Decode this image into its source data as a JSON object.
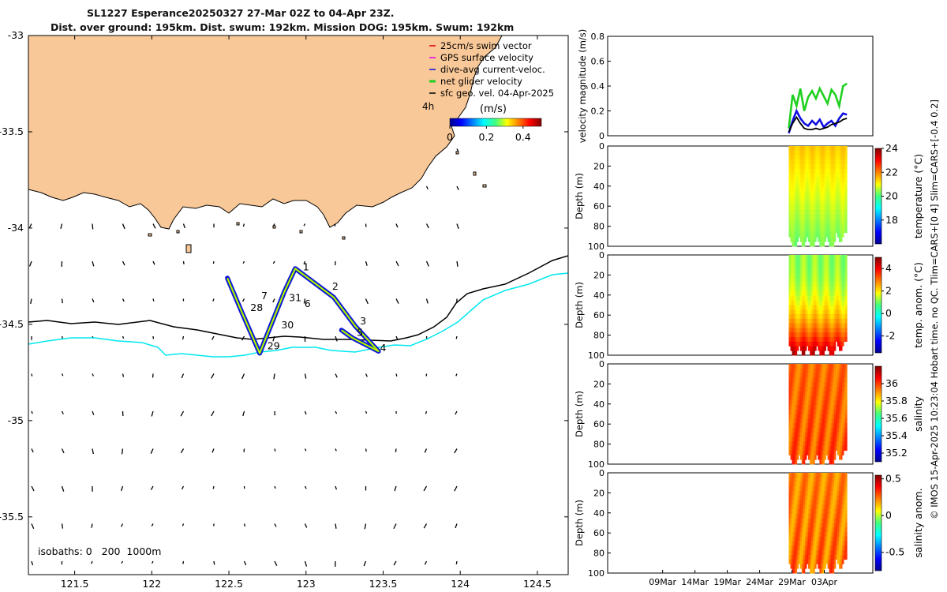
{
  "title": {
    "line1": "SL1227 Esperance20250327 27-Mar 02Z to 04-Apr 23Z.",
    "line2": "Dist. over ground: 195km. Dist. swum: 192km. Mission DOG: 195km. Swum: 192km"
  },
  "credit": "© IMOS 15-Apr-2025 10:23:04 Hobart time. no QC. Tlim=CARS+[0 4] Slim=CARS+[-0.4 0.2]",
  "colors": {
    "land": "#f9c898",
    "isobath_200": "#00e8ee",
    "isobath_1000": "#000000",
    "track": "#e8e800",
    "dive_avg": "#1010e0",
    "net_velocity": "#20d020"
  },
  "chart_data": [
    {
      "type": "map",
      "name": "track-map",
      "xlim": [
        121.2,
        124.7
      ],
      "ylim": [
        -35.8,
        -33.0
      ],
      "xticks": [
        121.5,
        122,
        122.5,
        123,
        123.5,
        124,
        124.5
      ],
      "xtick_labels": [
        "121.5",
        "122",
        "122.5",
        "123",
        "123.5",
        "124",
        "124.5"
      ],
      "yticks": [
        -33,
        -33.5,
        -34,
        -34.5,
        -35,
        -35.5
      ],
      "ytick_labels": [
        "-33",
        "-33.5",
        "-34",
        "-34.5",
        "-35",
        "-35.5"
      ],
      "track": [
        {
          "lon": 122.49,
          "lat": -34.26
        },
        {
          "lon": 122.58,
          "lat": -34.43
        },
        {
          "lon": 122.7,
          "lat": -34.65
        },
        {
          "lon": 122.8,
          "lat": -34.45
        },
        {
          "lon": 122.86,
          "lat": -34.33
        },
        {
          "lon": 122.93,
          "lat": -34.21
        },
        {
          "lon": 123.18,
          "lat": -34.36
        },
        {
          "lon": 123.32,
          "lat": -34.51
        },
        {
          "lon": 123.47,
          "lat": -34.64
        },
        {
          "lon": 123.3,
          "lat": -34.57
        },
        {
          "lon": 123.23,
          "lat": -34.53
        }
      ],
      "day_labels": [
        {
          "text": "1",
          "lon": 123.0,
          "lat": -34.22
        },
        {
          "text": "2",
          "lon": 123.19,
          "lat": -34.32
        },
        {
          "text": "3",
          "lon": 123.37,
          "lat": -34.5
        },
        {
          "text": "4",
          "lon": 123.5,
          "lat": -34.64
        },
        {
          "text": "5",
          "lon": 123.35,
          "lat": -34.56
        },
        {
          "text": "6",
          "lon": 123.01,
          "lat": -34.41
        },
        {
          "text": "7",
          "lon": 122.73,
          "lat": -34.37
        },
        {
          "text": "28",
          "lon": 122.68,
          "lat": -34.43
        },
        {
          "text": "29",
          "lon": 122.79,
          "lat": -34.63
        },
        {
          "text": "30",
          "lon": 122.88,
          "lat": -34.52
        },
        {
          "text": "31",
          "lon": 122.93,
          "lat": -34.38
        }
      ],
      "legend": [
        {
          "label": "25cm/s swim vector",
          "color": "#e00000"
        },
        {
          "label": "GPS surface velocity",
          "color": "#e000e0"
        },
        {
          "label": "dive-avg current-veloc.",
          "color": "#1010e0"
        },
        {
          "label": "net glider velocity",
          "color": "#20d020"
        },
        {
          "label": "sfc geo. vel. 04-Apr-2025",
          "color": "#000000"
        }
      ],
      "legend_extra": "4h",
      "colorbar": {
        "label": "(m/s)",
        "ticks": [
          "0",
          "0.2",
          "0.4"
        ],
        "range": [
          0,
          0.5
        ]
      },
      "isobaths_label": "isobaths: 0   200  1000m"
    },
    {
      "type": "line",
      "name": "velocity-magnitude",
      "ylabel": "velocity magnitude (m/s)",
      "ylim": [
        0,
        0.8
      ],
      "yticks": [
        "0",
        "0.2",
        "0.4",
        "0.6",
        "0.8"
      ],
      "xlim_days": [
        0,
        41
      ],
      "series": [
        {
          "name": "net glider velocity",
          "color": "#20d020",
          "x": [
            28.0,
            28.6,
            29.2,
            29.8,
            30.4,
            31.0,
            31.6,
            32.2,
            32.8,
            33.4,
            34.0,
            34.6,
            35.2,
            35.8,
            36.4,
            37.0
          ],
          "y": [
            0.06,
            0.33,
            0.24,
            0.38,
            0.2,
            0.31,
            0.36,
            0.3,
            0.38,
            0.32,
            0.26,
            0.37,
            0.33,
            0.24,
            0.4,
            0.42
          ]
        },
        {
          "name": "dive-avg current",
          "color": "#1010e0",
          "x": [
            28.0,
            28.6,
            29.2,
            29.8,
            30.4,
            31.0,
            31.6,
            32.2,
            32.8,
            33.4,
            34.0,
            34.6,
            35.2,
            35.8,
            36.4,
            37.0
          ],
          "y": [
            0.02,
            0.12,
            0.2,
            0.14,
            0.1,
            0.08,
            0.12,
            0.09,
            0.13,
            0.07,
            0.1,
            0.12,
            0.08,
            0.14,
            0.18,
            0.17
          ]
        },
        {
          "name": "sfc geo. vel.",
          "color": "#000000",
          "x": [
            28.0,
            28.6,
            29.2,
            29.8,
            30.4,
            31.0,
            31.6,
            32.2,
            32.8,
            33.4,
            34.0,
            34.6,
            35.2,
            35.8,
            36.4,
            37.0
          ],
          "y": [
            0.03,
            0.1,
            0.15,
            0.1,
            0.06,
            0.05,
            0.05,
            0.06,
            0.05,
            0.06,
            0.07,
            0.09,
            0.1,
            0.11,
            0.13,
            0.14
          ]
        }
      ]
    },
    {
      "type": "heatmap",
      "name": "temperature",
      "ylabel": "Depth (m)",
      "cblabel": "temperature (°C)",
      "cb_ticks": [
        "24",
        "22",
        "20",
        "18"
      ],
      "cb_range": [
        16,
        24
      ],
      "value_range": [
        20.2,
        21.4
      ],
      "ylim": [
        0,
        100
      ],
      "yticks": [
        "0",
        "20",
        "40",
        "60",
        "80",
        "100"
      ],
      "palette": "jet"
    },
    {
      "type": "heatmap",
      "name": "temp-anomaly",
      "ylabel": "Depth (m)",
      "cblabel": "temp. anom. (°C)",
      "cb_ticks": [
        "4",
        "2",
        "0",
        "-2"
      ],
      "cb_range": [
        -3.5,
        5
      ],
      "value_range": [
        1.2,
        4.8
      ],
      "ylim": [
        0,
        100
      ],
      "yticks": [
        "0",
        "20",
        "40",
        "60",
        "80",
        "100"
      ],
      "palette": "jet"
    },
    {
      "type": "heatmap",
      "name": "salinity",
      "ylabel": "Depth (m)",
      "cblabel": "salinity",
      "cb_ticks": [
        "36",
        "35.8",
        "35.6",
        "35.4",
        "35.2"
      ],
      "cb_range": [
        35.1,
        36.2
      ],
      "value_range": [
        35.9,
        36.05
      ],
      "ylim": [
        0,
        100
      ],
      "yticks": [
        "0",
        "20",
        "40",
        "60",
        "80",
        "100"
      ],
      "palette": "jet"
    },
    {
      "type": "heatmap",
      "name": "salinity-anomaly",
      "ylabel": "Depth (m)",
      "cblabel": "salinity anom.",
      "cb_ticks": [
        "0.5",
        "0",
        "-0.5"
      ],
      "cb_range": [
        -0.75,
        0.55
      ],
      "value_range": [
        0.15,
        0.35
      ],
      "ylim": [
        0,
        100
      ],
      "yticks": [
        "0",
        "20",
        "40",
        "60",
        "80",
        "100"
      ],
      "xtick_labels": [
        "09Mar",
        "14Mar",
        "19Mar",
        "24Mar",
        "29Mar",
        "03Apr"
      ],
      "palette": "jet"
    }
  ]
}
